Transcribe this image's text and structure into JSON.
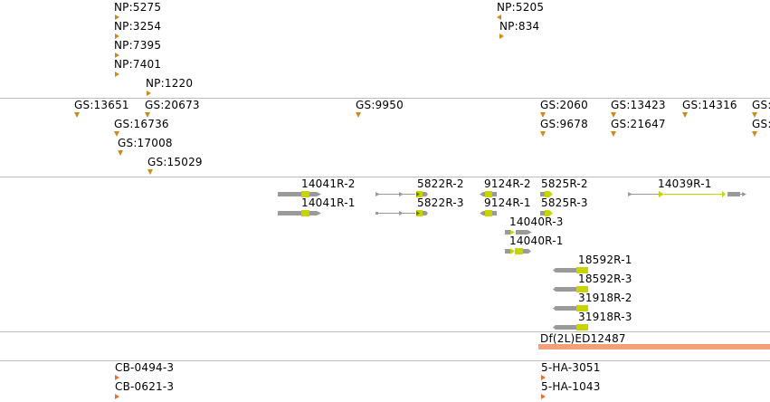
{
  "colors": {
    "marker": "#cc8c1a",
    "exon_gray": "#9a9a9a",
    "cds_green": "#c8d400",
    "deletion": "#f2a07a",
    "cb_marker": "#e8703a",
    "separator": "#bdbdbd"
  },
  "np_track": {
    "items": [
      {
        "label": "NP:5275",
        "marker": "right"
      },
      {
        "label": "NP:3254",
        "marker": "right"
      },
      {
        "label": "NP:7395",
        "marker": "right"
      },
      {
        "label": "NP:7401",
        "marker": "right"
      },
      {
        "label": "NP:1220",
        "marker": "right"
      },
      {
        "label": "NP:5205",
        "marker": "left"
      },
      {
        "label": "NP:834",
        "marker": "right"
      }
    ]
  },
  "gs_track": {
    "items": [
      {
        "label": "GS:13651"
      },
      {
        "label": "GS:20673"
      },
      {
        "label": "GS:16736"
      },
      {
        "label": "GS:17008"
      },
      {
        "label": "GS:15029"
      },
      {
        "label": "GS:9950"
      },
      {
        "label": "GS:2060"
      },
      {
        "label": "GS:9678"
      },
      {
        "label": "GS:13423"
      },
      {
        "label": "GS:21647"
      },
      {
        "label": "GS:14316"
      },
      {
        "label": "GS:"
      },
      {
        "label": "GS:"
      }
    ]
  },
  "gene_track": {
    "items": [
      {
        "label": "14041R-2"
      },
      {
        "label": "14041R-1"
      },
      {
        "label": "5822R-2"
      },
      {
        "label": "5822R-3"
      },
      {
        "label": "9124R-2"
      },
      {
        "label": "9124R-1"
      },
      {
        "label": "5825R-2"
      },
      {
        "label": "5825R-3"
      },
      {
        "label": "14040R-3"
      },
      {
        "label": "14040R-1"
      },
      {
        "label": "14039R-1"
      },
      {
        "label": "18592R-1"
      },
      {
        "label": "18592R-3"
      },
      {
        "label": "31918R-2"
      },
      {
        "label": "31918R-3"
      }
    ]
  },
  "deletion_track": {
    "label": "Df(2L)ED12487"
  },
  "cb_track": {
    "items": [
      {
        "label": "CB-0494-3"
      },
      {
        "label": "CB-0621-3"
      },
      {
        "label": "5-HA-3051"
      },
      {
        "label": "5-HA-1043"
      }
    ]
  }
}
